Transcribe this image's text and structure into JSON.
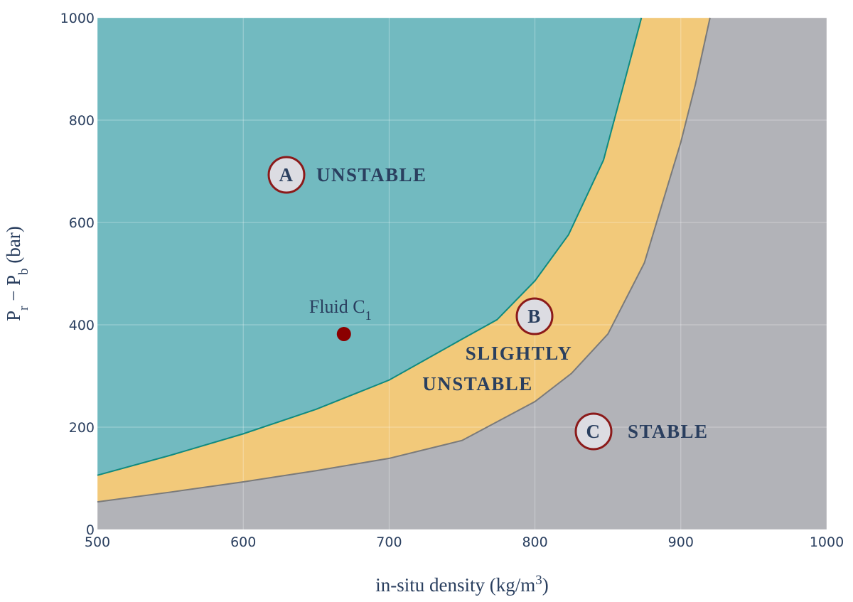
{
  "chart_data": {
    "type": "area",
    "xlabel": [
      "in-situ density (kg/m",
      "3",
      ")"
    ],
    "ylabel": [
      "P",
      "r",
      " − P",
      "b",
      " (bar)"
    ],
    "xlim": [
      500,
      1000
    ],
    "xticks": [
      500,
      600,
      700,
      800,
      900,
      1000
    ],
    "ylim": [
      0,
      1000
    ],
    "yticks": [
      0,
      200,
      400,
      600,
      800,
      1000
    ],
    "grid": true,
    "background": "#b2b3b8",
    "series": [
      {
        "line_color": "#7a7a7a",
        "color": "#f2c97a",
        "x": [
          500,
          550,
          600,
          650,
          700,
          750,
          800,
          825,
          850,
          875,
          900,
          910,
          920
        ],
        "values": [
          54,
          73,
          93,
          115,
          139,
          174,
          250,
          305,
          382,
          521,
          757,
          870,
          1000
        ]
      },
      {
        "line_color": "#0f8a80",
        "color": "#72bac0",
        "x": [
          500,
          550,
          600,
          650,
          700,
          750,
          774,
          800,
          823,
          847,
          862,
          873
        ],
        "values": [
          106,
          145,
          187,
          235,
          292,
          372,
          410,
          486,
          576,
          722,
          882,
          1000
        ]
      }
    ],
    "points": {
      "x": [
        669
      ],
      "y": [
        382
      ],
      "color": "#8b0000",
      "label": [
        "Fluid C",
        "1"
      ]
    },
    "regions": [
      {
        "marker": "A",
        "text": [
          "UNSTABLE"
        ]
      },
      {
        "marker": "B",
        "text": [
          "SLIGHTLY",
          "UNSTABLE"
        ]
      },
      {
        "marker": "C",
        "text": [
          "STABLE"
        ]
      }
    ]
  }
}
